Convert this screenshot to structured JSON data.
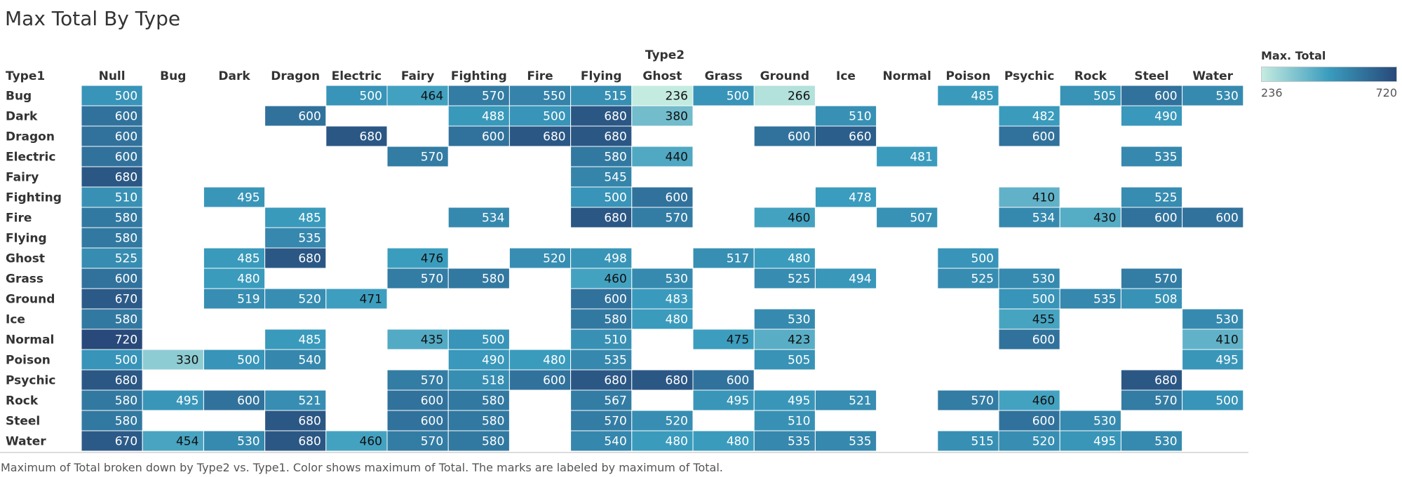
{
  "title": "Max Total By Type",
  "caption": "Maximum of Total broken down by Type2 vs. Type1.  Color shows maximum of Total.  The marks are labeled by maximum of Total.",
  "legend": {
    "title": "Max. Total",
    "min_label": "236",
    "max_label": "720",
    "color_low": "#c4ebe0",
    "color_mid": "#3a9cbe",
    "color_high": "#28497a"
  },
  "chart_data": {
    "type": "heatmap",
    "title": "Max Total By Type",
    "xlabel": "Type2",
    "ylabel": "Type1",
    "x_categories": [
      "Null",
      "Bug",
      "Dark",
      "Dragon",
      "Electric",
      "Fairy",
      "Fighting",
      "Fire",
      "Flying",
      "Ghost",
      "Grass",
      "Ground",
      "Ice",
      "Normal",
      "Poison",
      "Psychic",
      "Rock",
      "Steel",
      "Water"
    ],
    "y_categories": [
      "Bug",
      "Dark",
      "Dragon",
      "Electric",
      "Fairy",
      "Fighting",
      "Fire",
      "Flying",
      "Ghost",
      "Grass",
      "Ground",
      "Ice",
      "Normal",
      "Poison",
      "Psychic",
      "Rock",
      "Steel",
      "Water"
    ],
    "color_range": [
      236,
      720
    ],
    "values": [
      [
        500,
        null,
        null,
        null,
        500,
        464,
        570,
        550,
        515,
        236,
        500,
        266,
        null,
        null,
        485,
        null,
        505,
        600,
        530
      ],
      [
        600,
        null,
        null,
        600,
        null,
        null,
        488,
        500,
        680,
        380,
        null,
        null,
        510,
        null,
        null,
        482,
        null,
        490,
        null
      ],
      [
        600,
        null,
        null,
        null,
        680,
        null,
        600,
        680,
        680,
        null,
        null,
        600,
        660,
        null,
        null,
        600,
        null,
        null,
        null
      ],
      [
        600,
        null,
        null,
        null,
        null,
        570,
        null,
        null,
        580,
        440,
        null,
        null,
        null,
        481,
        null,
        null,
        null,
        535,
        null
      ],
      [
        680,
        null,
        null,
        null,
        null,
        null,
        null,
        null,
        545,
        null,
        null,
        null,
        null,
        null,
        null,
        null,
        null,
        null,
        null
      ],
      [
        510,
        null,
        495,
        null,
        null,
        null,
        null,
        null,
        500,
        600,
        null,
        null,
        478,
        null,
        null,
        410,
        null,
        525,
        null
      ],
      [
        580,
        null,
        null,
        485,
        null,
        null,
        534,
        null,
        680,
        570,
        null,
        460,
        null,
        507,
        null,
        534,
        430,
        600,
        600
      ],
      [
        580,
        null,
        null,
        535,
        null,
        null,
        null,
        null,
        null,
        null,
        null,
        null,
        null,
        null,
        null,
        null,
        null,
        null,
        null
      ],
      [
        525,
        null,
        485,
        680,
        null,
        476,
        null,
        520,
        498,
        null,
        517,
        480,
        null,
        null,
        500,
        null,
        null,
        null,
        null
      ],
      [
        600,
        null,
        480,
        null,
        null,
        570,
        580,
        null,
        460,
        530,
        null,
        525,
        494,
        null,
        525,
        530,
        null,
        570,
        null
      ],
      [
        670,
        null,
        519,
        520,
        471,
        null,
        null,
        null,
        600,
        483,
        null,
        null,
        null,
        null,
        null,
        500,
        535,
        508,
        null
      ],
      [
        580,
        null,
        null,
        null,
        null,
        null,
        null,
        null,
        580,
        480,
        null,
        530,
        null,
        null,
        null,
        455,
        null,
        null,
        530
      ],
      [
        720,
        null,
        null,
        485,
        null,
        435,
        500,
        null,
        510,
        null,
        475,
        423,
        null,
        null,
        null,
        600,
        null,
        null,
        410
      ],
      [
        500,
        330,
        500,
        540,
        null,
        null,
        490,
        480,
        535,
        null,
        null,
        505,
        null,
        null,
        null,
        null,
        null,
        null,
        495
      ],
      [
        680,
        null,
        null,
        null,
        null,
        570,
        518,
        600,
        680,
        680,
        600,
        null,
        null,
        null,
        null,
        null,
        null,
        680,
        null
      ],
      [
        580,
        495,
        600,
        521,
        null,
        600,
        580,
        null,
        567,
        null,
        495,
        495,
        521,
        null,
        570,
        460,
        null,
        570,
        500
      ],
      [
        580,
        null,
        null,
        680,
        null,
        600,
        580,
        null,
        570,
        520,
        null,
        510,
        null,
        null,
        null,
        600,
        530,
        null,
        null
      ],
      [
        670,
        454,
        530,
        680,
        460,
        570,
        580,
        null,
        540,
        480,
        480,
        535,
        535,
        null,
        515,
        520,
        495,
        530,
        null
      ]
    ]
  }
}
